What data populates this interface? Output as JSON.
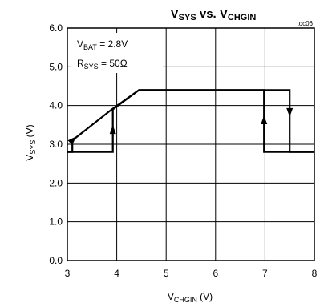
{
  "chart_data": {
    "type": "line",
    "title": {
      "main": "V",
      "main_sub": "SYS",
      "mid": " vs. V",
      "mid_sub": "CHGIN"
    },
    "tag": "toc06",
    "xlabel": {
      "main": "V",
      "sub": "CHGIN",
      "unit": " (V)"
    },
    "ylabel": {
      "main": "V",
      "sub": "SYS",
      "unit": " (V)"
    },
    "xlim": [
      3,
      8
    ],
    "ylim": [
      0,
      6
    ],
    "xticks": [
      3,
      4,
      5,
      6,
      7,
      8
    ],
    "xtick_labels": [
      "3",
      "4",
      "5",
      "6",
      "7",
      "8"
    ],
    "yticks": [
      0,
      1,
      2,
      3,
      4,
      5,
      6
    ],
    "ytick_labels": [
      "0.0",
      "1.0",
      "2.0",
      "3.0",
      "4.0",
      "5.0",
      "6.0"
    ],
    "grid": true,
    "annotations": [
      {
        "main": "V",
        "sub": "BAT",
        "rest": " = 2.8V"
      },
      {
        "main": "R",
        "sub": "SYS",
        "rest": " = 50Ω"
      }
    ],
    "series": [
      {
        "x": [
          3.0,
          3.1,
          3.1,
          3.9,
          4.45,
          6.98,
          6.98,
          8.0
        ],
        "y": [
          2.8,
          2.8,
          3.1,
          3.9,
          4.4,
          4.4,
          2.8,
          2.8
        ]
      },
      {
        "x": [
          3.0,
          3.92,
          3.92,
          4.45,
          7.5,
          7.5,
          8.0
        ],
        "y": [
          2.8,
          2.8,
          3.9,
          4.4,
          4.4,
          2.8,
          2.8
        ]
      }
    ],
    "direction_arrows": [
      {
        "x": 3.1,
        "y": 3.1,
        "dir": "up-right"
      },
      {
        "x": 3.92,
        "y": 3.35,
        "dir": "up"
      },
      {
        "x": 6.98,
        "y": 3.6,
        "dir": "up"
      },
      {
        "x": 7.5,
        "y": 3.85,
        "dir": "down"
      }
    ]
  }
}
